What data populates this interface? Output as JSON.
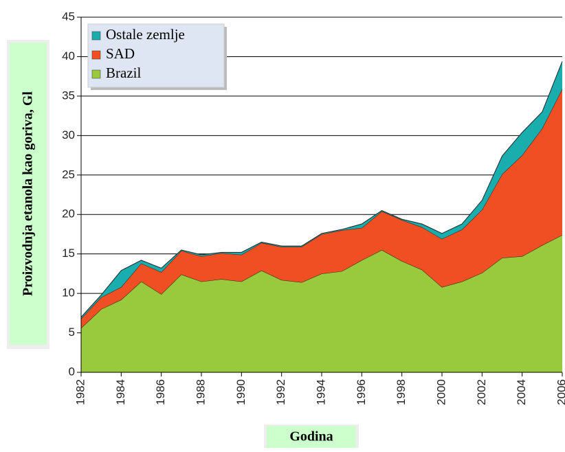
{
  "chart_data": {
    "type": "stacked_area",
    "y_label": "Proizvodnja etanola kao goriva, Gl",
    "x_label": "Godina",
    "x": [
      1982,
      1983,
      1984,
      1985,
      1986,
      1987,
      1988,
      1989,
      1990,
      1991,
      1992,
      1993,
      1994,
      1995,
      1996,
      1997,
      1998,
      1999,
      2000,
      2001,
      2002,
      2003,
      2004,
      2005,
      2006
    ],
    "series": [
      {
        "name": "Brazil",
        "color": "#99c93c",
        "values": [
          5.6,
          8.0,
          9.2,
          11.5,
          9.9,
          12.4,
          11.5,
          11.8,
          11.5,
          12.9,
          11.7,
          11.4,
          12.5,
          12.8,
          14.2,
          15.5,
          14.1,
          13.0,
          10.8,
          11.5,
          12.6,
          14.5,
          14.7,
          16.1,
          17.4
        ]
      },
      {
        "name": "SAD",
        "color": "#f04e23",
        "values": [
          1.2,
          1.5,
          1.6,
          2.3,
          2.8,
          3.0,
          3.2,
          3.3,
          3.4,
          3.5,
          4.2,
          4.5,
          5.0,
          5.2,
          4.1,
          4.9,
          5.2,
          5.4,
          6.1,
          6.6,
          8.0,
          10.6,
          12.8,
          14.8,
          18.5
        ]
      },
      {
        "name": "Ostale zemlje",
        "color": "#1aadad",
        "values": [
          0.2,
          0.3,
          2.1,
          0.4,
          0.5,
          0.1,
          0.2,
          0.1,
          0.3,
          0.1,
          0.1,
          0.1,
          0.1,
          0.1,
          0.5,
          0.1,
          0.1,
          0.4,
          0.7,
          0.7,
          1.2,
          2.3,
          2.9,
          2.1,
          3.5
        ]
      }
    ],
    "xlim": [
      1982,
      2006
    ],
    "xticks": [
      1982,
      1984,
      1986,
      1988,
      1990,
      1992,
      1994,
      1996,
      1998,
      2000,
      2002,
      2004,
      2006
    ],
    "ylim": [
      0,
      45
    ],
    "yticks": [
      0,
      5,
      10,
      15,
      20,
      25,
      30,
      35,
      40,
      45
    ],
    "grid": true
  }
}
